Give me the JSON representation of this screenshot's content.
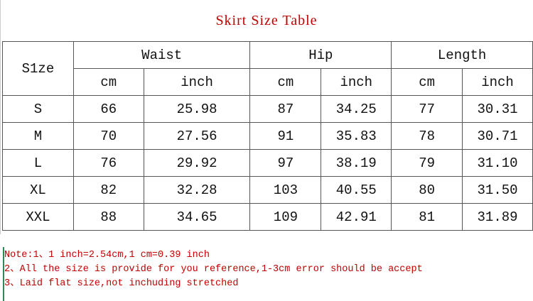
{
  "title": "Skirt Size Table",
  "header": {
    "size": "S1ze",
    "groups": [
      "Waist",
      "Hip",
      "Length"
    ],
    "units": [
      "cm",
      "inch",
      "cm",
      "inch",
      "cm",
      "inch"
    ]
  },
  "rows": [
    [
      "S",
      "66",
      "25.98",
      "87",
      "34.25",
      "77",
      "30.31"
    ],
    [
      "M",
      "70",
      "27.56",
      "91",
      "35.83",
      "78",
      "30.71"
    ],
    [
      "L",
      "76",
      "29.92",
      "97",
      "38.19",
      "79",
      "31.10"
    ],
    [
      "XL",
      "82",
      "32.28",
      "103",
      "40.55",
      "80",
      "31.50"
    ],
    [
      "XXL",
      "88",
      "34.65",
      "109",
      "42.91",
      "81",
      "31.89"
    ]
  ],
  "notes": [
    "Note:1、1 inch=2.54cm,1 cm=0.39 inch",
    "2、All the size is provide for you reference,1-3cm error should be accept",
    "3、Laid flat size,not inchuding stretched"
  ],
  "colors": {
    "title": "#c00000",
    "notes": "#c00000",
    "border": "#555555"
  }
}
